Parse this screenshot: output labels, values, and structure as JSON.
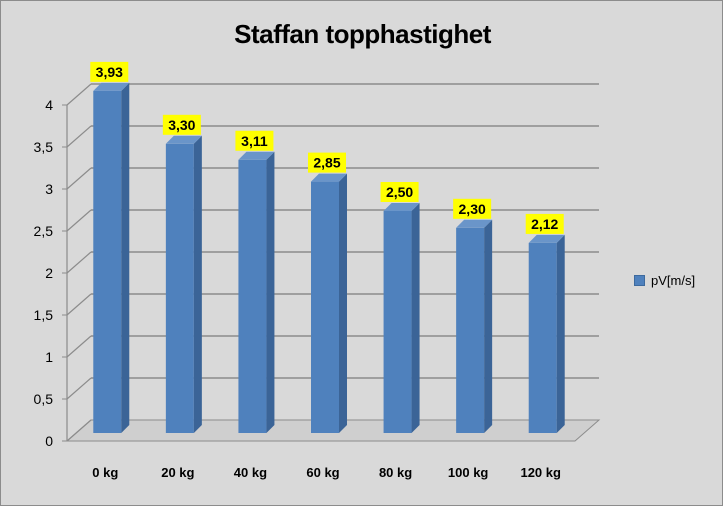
{
  "chart_data": {
    "type": "bar",
    "title": "Staffan topphastighet",
    "categories": [
      "0 kg",
      "20 kg",
      "40 kg",
      "60 kg",
      "80 kg",
      "100 kg",
      "120 kg"
    ],
    "series": [
      {
        "name": "pV[m/s]",
        "values": [
          3.93,
          3.3,
          3.11,
          2.85,
          2.5,
          2.3,
          2.12
        ],
        "labels": [
          "3,93",
          "3,30",
          "3,11",
          "2,85",
          "2,50",
          "2,30",
          "2,12"
        ],
        "color": "#4f81bd"
      }
    ],
    "y_ticks": [
      "0",
      "0,5",
      "1",
      "1,5",
      "2",
      "2,5",
      "3",
      "3,5",
      "4"
    ],
    "ylim": [
      0,
      4
    ],
    "grid": true,
    "legend": "right",
    "data_label_background": "#ffff00",
    "style": "3d-column"
  }
}
